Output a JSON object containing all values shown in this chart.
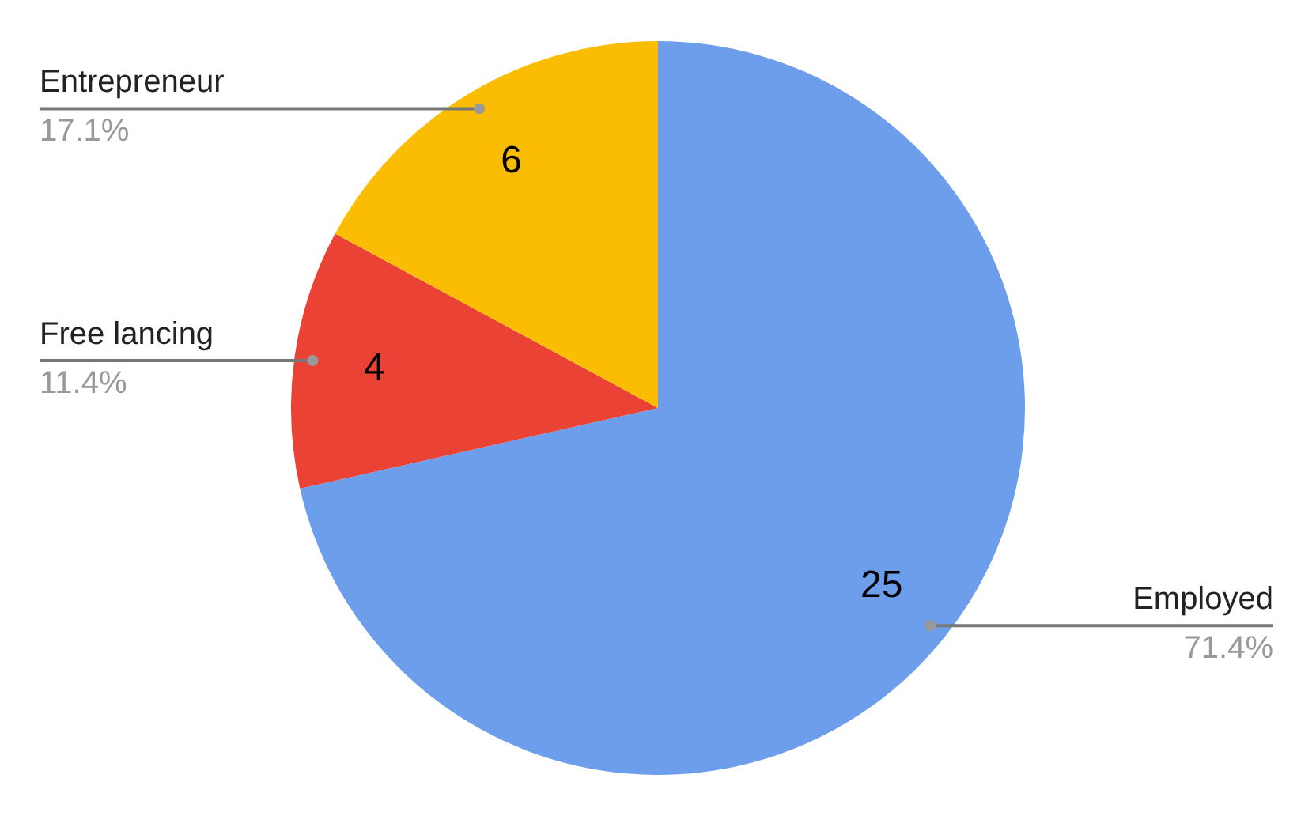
{
  "chart_data": {
    "type": "pie",
    "categories": [
      "Employed",
      "Free lancing",
      "Entrepreneur"
    ],
    "values": [
      71.4,
      11.4,
      17.1
    ],
    "colors": [
      "#6d9eeb",
      "#ea4335",
      "#fbbc04"
    ],
    "value_labels": [
      "71.4%",
      "11.4%",
      "17.1%"
    ],
    "annotations": [
      "25",
      "4",
      "6"
    ]
  }
}
